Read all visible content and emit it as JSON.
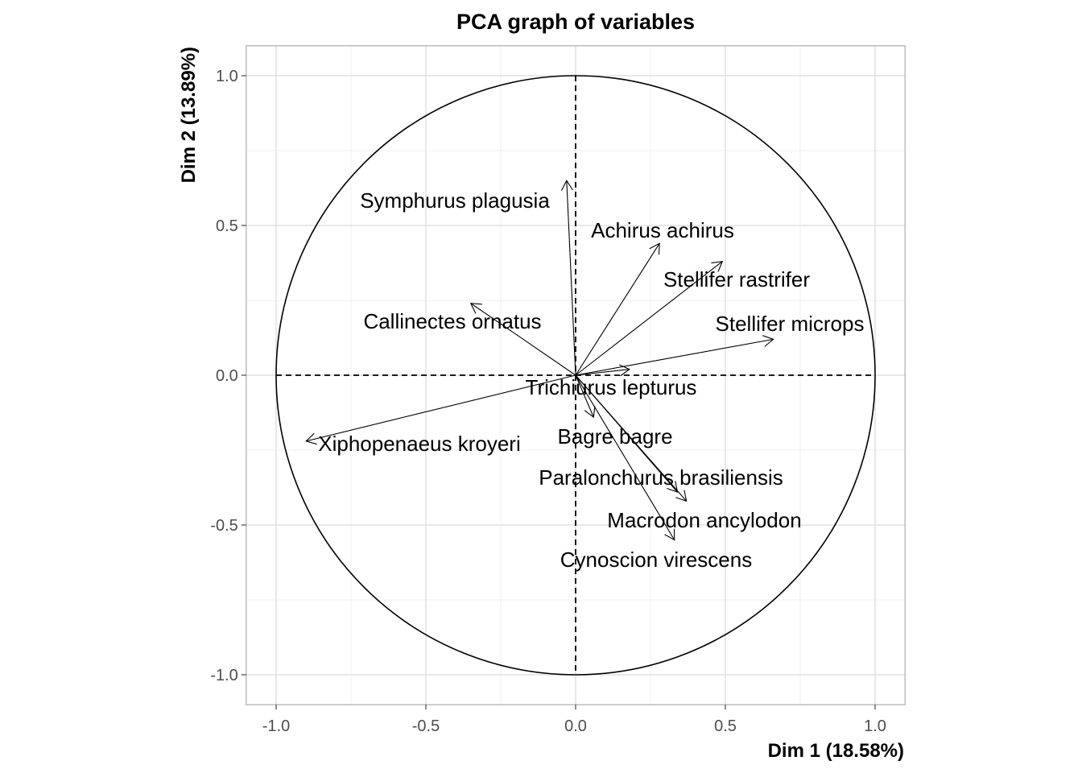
{
  "chart_data": {
    "type": "scatter",
    "subtype": "pca-correlation-circle",
    "title": "PCA graph of variables",
    "xlabel": "Dim 1 (18.58%)",
    "ylabel": "Dim 2 (13.89%)",
    "xlim": [
      -1.1,
      1.1
    ],
    "ylim": [
      -1.1,
      1.1
    ],
    "x_ticks": [
      -1.0,
      -0.5,
      0.0,
      0.5,
      1.0
    ],
    "y_ticks": [
      -1.0,
      -0.5,
      0.0,
      0.5,
      1.0
    ],
    "x_tick_labels": [
      "-1.0",
      "-0.5",
      "0.0",
      "0.5",
      "1.0"
    ],
    "y_tick_labels": [
      "-1.0",
      "-0.5",
      "0.0",
      "0.5",
      "1.0"
    ],
    "grid": true,
    "unit_circle": true,
    "reference_lines": "dashed at x=0 and y=0",
    "arrow_color": "#000000",
    "variables": [
      {
        "name": "Symphurus plagusia",
        "x": -0.03,
        "y": 0.65
      },
      {
        "name": "Achirus achirus",
        "x": 0.28,
        "y": 0.44
      },
      {
        "name": "Stellifer rastrifer",
        "x": 0.49,
        "y": 0.38
      },
      {
        "name": "Callinectes ornatus",
        "x": -0.35,
        "y": 0.24
      },
      {
        "name": "Stellifer microps",
        "x": 0.66,
        "y": 0.12
      },
      {
        "name": "Trichiurus lepturus",
        "x": 0.18,
        "y": 0.02
      },
      {
        "name": "Bagre bagre",
        "x": 0.06,
        "y": -0.14
      },
      {
        "name": "Xiphopenaeus kroyeri",
        "x": -0.9,
        "y": -0.22
      },
      {
        "name": "Paralonchurus brasiliensis",
        "x": 0.34,
        "y": -0.39
      },
      {
        "name": "Macrodon ancylodon",
        "x": 0.37,
        "y": -0.42
      },
      {
        "name": "Cynoscion virescens",
        "x": 0.33,
        "y": -0.55
      }
    ]
  }
}
